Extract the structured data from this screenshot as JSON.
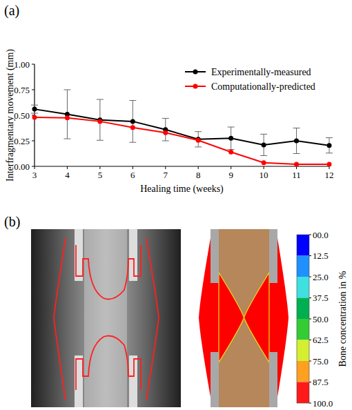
{
  "chart_data": {
    "type": "line",
    "x_label": "Healing time (weeks)",
    "y_label": "Interfragmentary movement (mm)",
    "x": [
      3,
      4,
      5,
      6,
      7,
      8,
      9,
      10,
      11,
      12
    ],
    "xlim": [
      3,
      12
    ],
    "xticks": [
      3,
      4,
      5,
      6,
      7,
      8,
      9,
      10,
      11,
      12
    ],
    "ylim": [
      0,
      1
    ],
    "yticks": [
      {
        "value": 0,
        "label": "0.00"
      },
      {
        "value": 0.25,
        "label": "0.25"
      },
      {
        "value": 0.5,
        "label": "0.50"
      },
      {
        "value": 0.75,
        "label": "0.75"
      },
      {
        "value": 1,
        "label": "1.00"
      }
    ],
    "legend": "top-right",
    "grid": false,
    "series": [
      {
        "name": "Experimentally-measured",
        "color": "#000000",
        "marker": "circle",
        "line_style": "solid",
        "values": [
          0.56,
          0.51,
          0.455,
          0.44,
          0.36,
          0.265,
          0.275,
          0.21,
          0.25,
          0.205
        ],
        "errors": [
          0.04,
          0.24,
          0.2,
          0.205,
          0.11,
          0.075,
          0.11,
          0.105,
          0.125,
          0.075
        ]
      },
      {
        "name": "Computationally-predicted",
        "color": "#ff0000",
        "marker": "circle",
        "line_style": "solid",
        "values": [
          0.48,
          0.475,
          0.44,
          0.38,
          0.33,
          0.255,
          0.14,
          0.035,
          0.02,
          0.02
        ]
      }
    ]
  },
  "panel_labels": [
    "(a)",
    "(b)"
  ],
  "panel_b": {
    "colorbar": {
      "title": "Bone concentration in %",
      "range": [
        0,
        100
      ],
      "ticks": [
        {
          "value": 0,
          "label": "00.0"
        },
        {
          "value": 12.5,
          "label": "12.5"
        },
        {
          "value": 25,
          "label": "25.0"
        },
        {
          "value": 37.5,
          "label": "37.5"
        },
        {
          "value": 50,
          "label": "50.0"
        },
        {
          "value": 62.5,
          "label": "62.5"
        },
        {
          "value": 75,
          "label": "75.0"
        },
        {
          "value": 87.5,
          "label": "87.5"
        },
        {
          "value": 100,
          "label": "100.0"
        }
      ],
      "colors": [
        "#0000ff",
        "#1e90ff",
        "#3fe0e0",
        "#00b050",
        "#33cc33",
        "#d4ee30",
        "#ffa020",
        "#ff1a1a"
      ]
    }
  }
}
